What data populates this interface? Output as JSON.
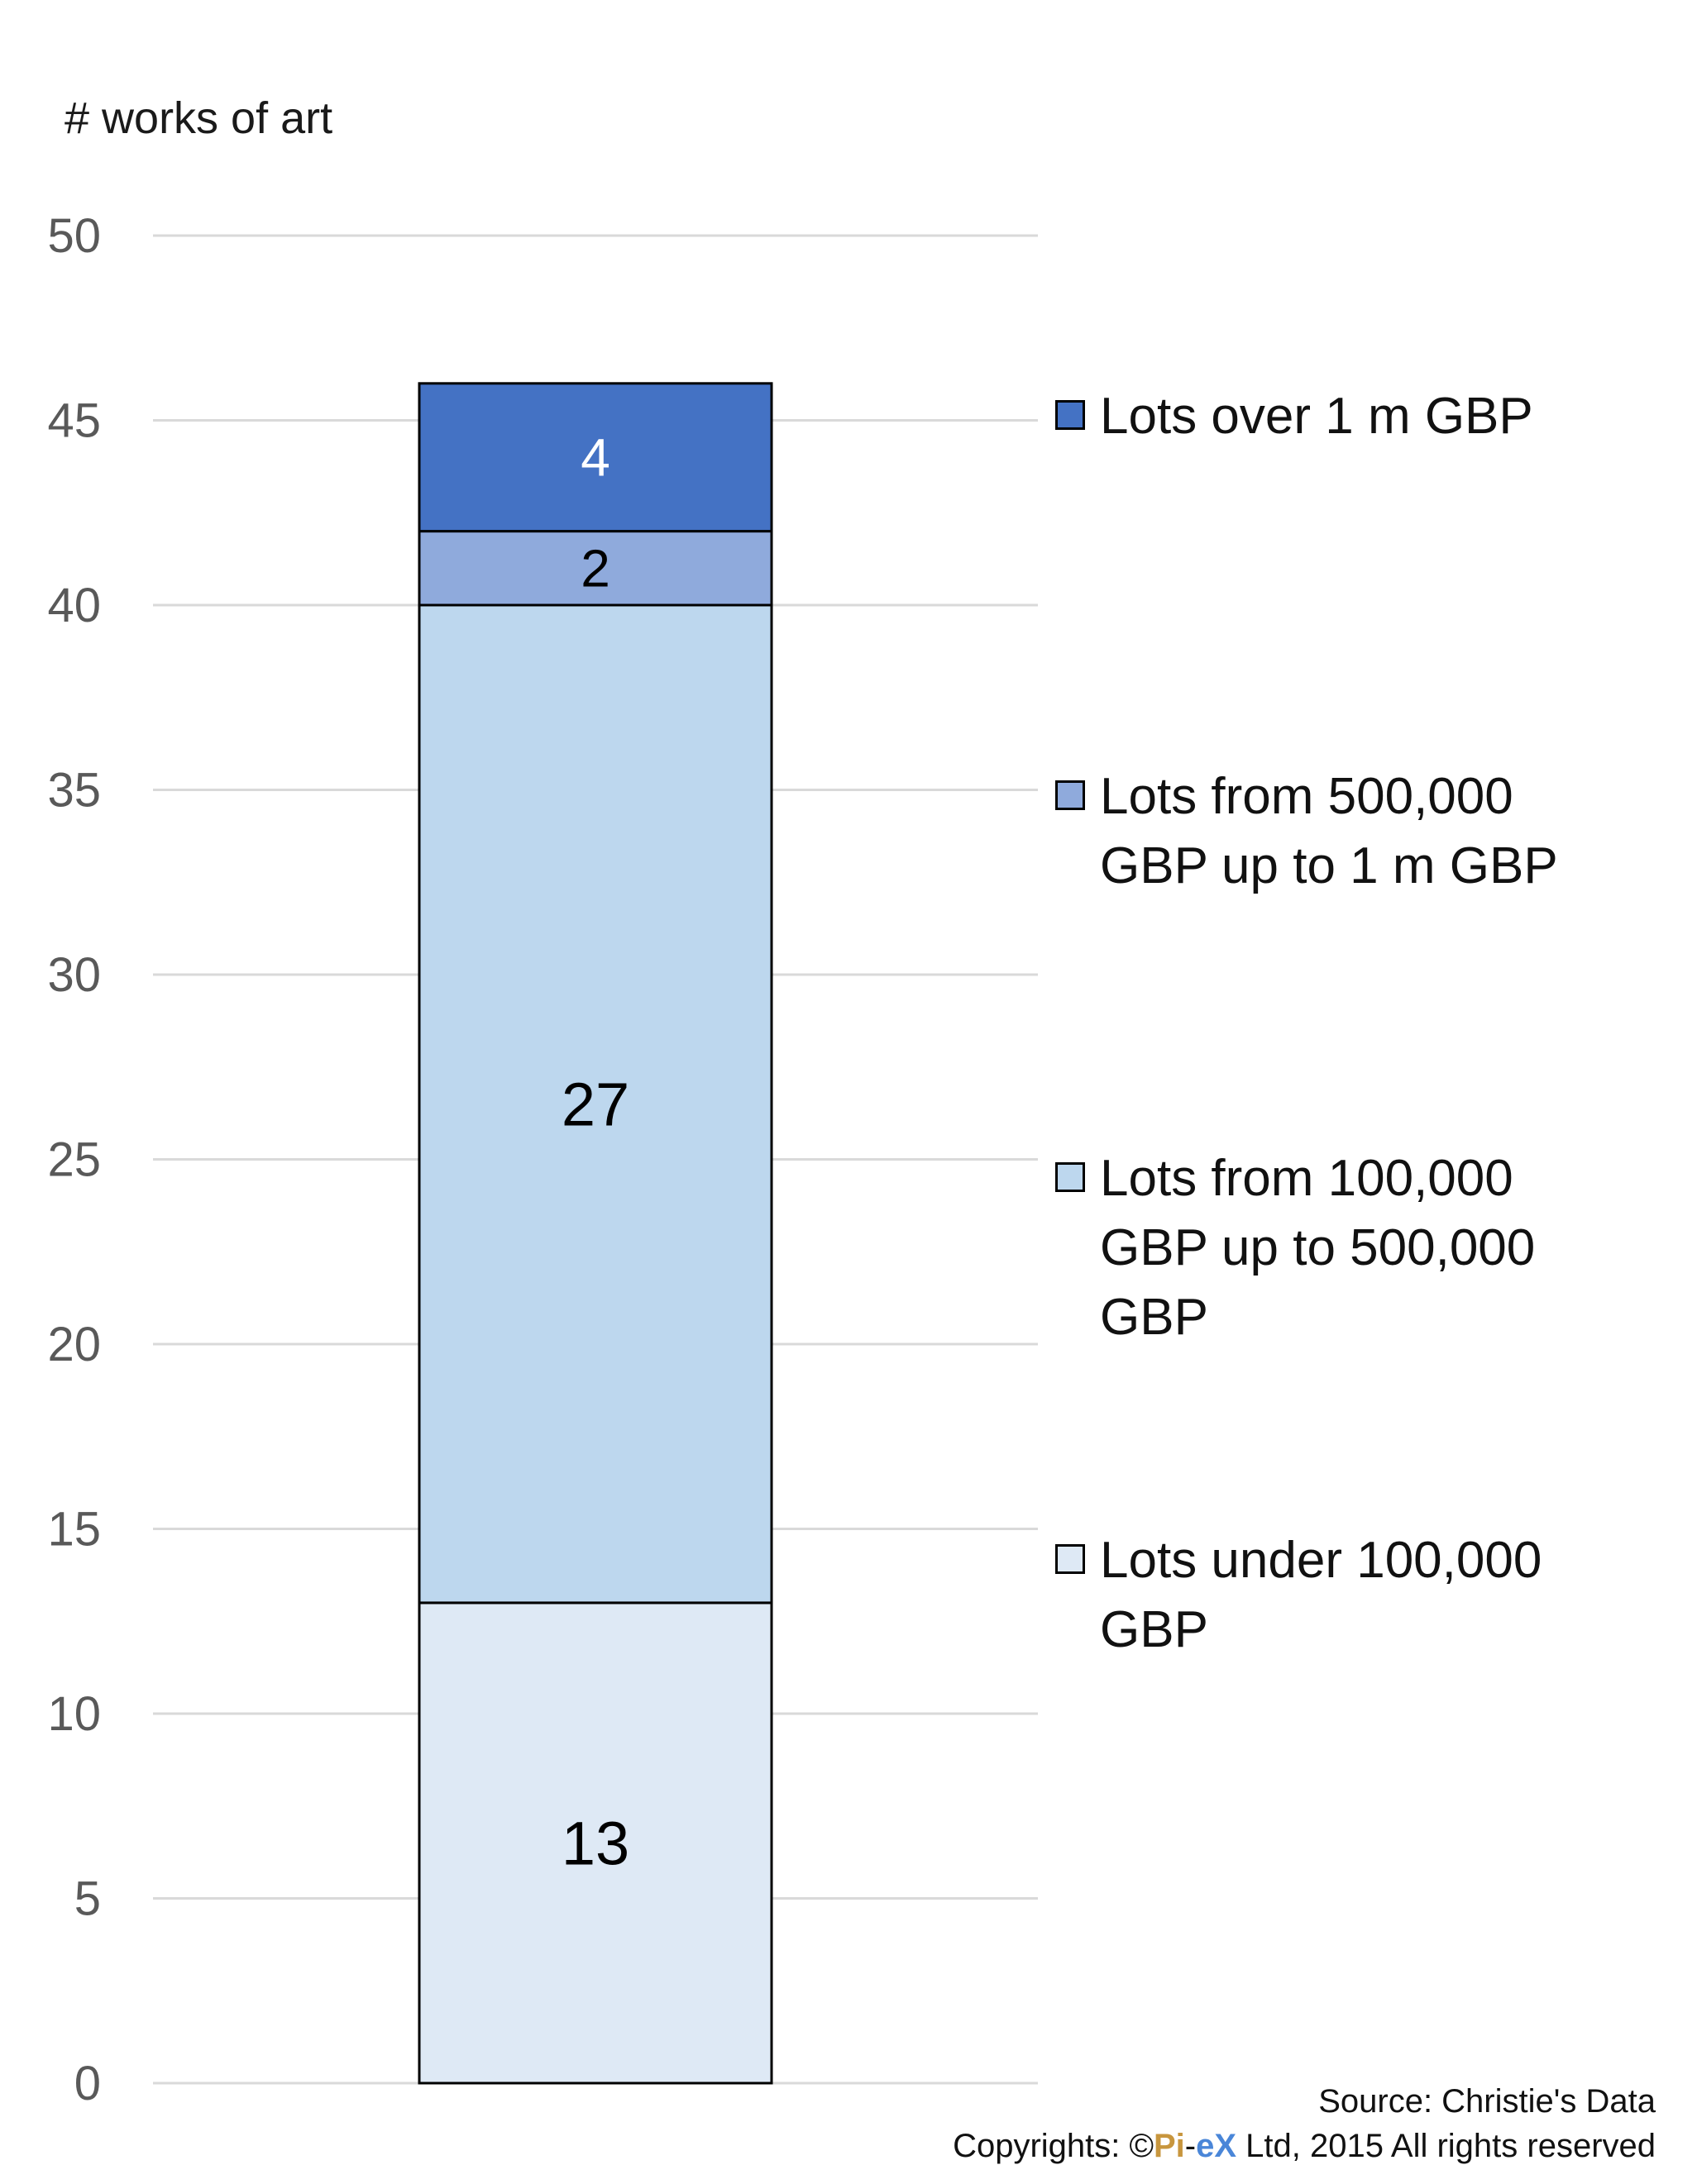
{
  "chart_data": {
    "type": "bar",
    "stacked": true,
    "ylabel": "# works of art",
    "ylim": [
      0,
      50
    ],
    "y_ticks": [
      0,
      5,
      10,
      15,
      20,
      25,
      30,
      35,
      40,
      45,
      50
    ],
    "grid": true,
    "legend_position": "right",
    "categories": [
      ""
    ],
    "series": [
      {
        "name": "Lots under 100,000 GBP",
        "values": [
          13
        ],
        "color": "#dee9f5"
      },
      {
        "name": "Lots from 100,000 GBP up to 500,000 GBP",
        "values": [
          27
        ],
        "color": "#bdd7ee"
      },
      {
        "name": "Lots from 500,000 GBP up to 1 m GBP",
        "values": [
          2
        ],
        "color": "#8faadc"
      },
      {
        "name": "Lots over 1 m GBP",
        "values": [
          4
        ],
        "color": "#4472c4"
      }
    ]
  },
  "footer": {
    "source": "Source: Christie's Data",
    "copyright_prefix": "Copyrights: ©",
    "brand_pi": "Pi",
    "brand_dash": "-",
    "brand_ex": "eX",
    "copyright_suffix": " Ltd, 2015 All rights reserved"
  }
}
